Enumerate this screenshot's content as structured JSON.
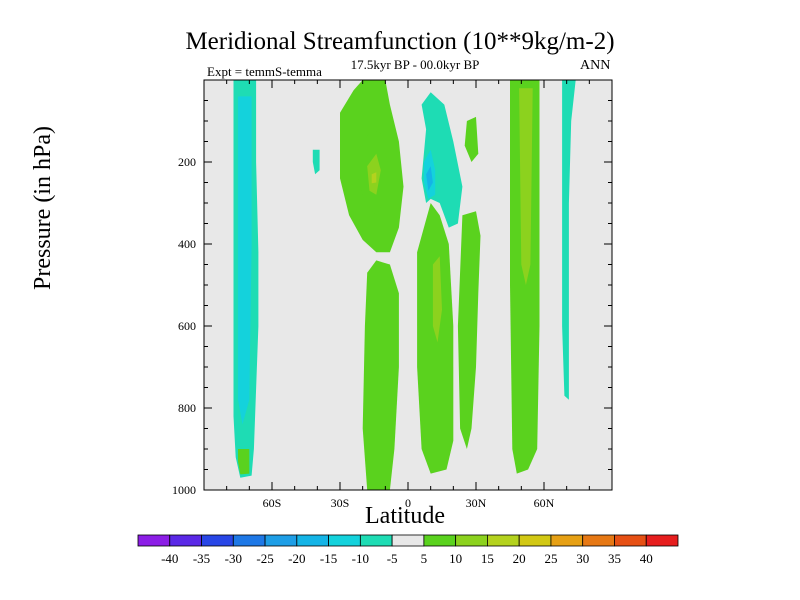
{
  "figure": {
    "title": "Meridional Streamfunction (10**9kg/m-2)",
    "subtitle": "17.5kyr BP - 00.0kyr BP",
    "experiment": "Expt = temmS-temma",
    "season": "ANN",
    "background": "#e8e8e8"
  },
  "chart_data": {
    "type": "heatmap",
    "title": "Meridional Streamfunction (10**9kg/m-2)",
    "xlabel": "Latitude",
    "ylabel": "Pressure (in hPa)",
    "xlim": [
      -90,
      90
    ],
    "ylim": [
      1000,
      0
    ],
    "x_ticks": [
      {
        "value": -60,
        "label": "60S"
      },
      {
        "value": -30,
        "label": "30S"
      },
      {
        "value": 0,
        "label": "0"
      },
      {
        "value": 30,
        "label": "30N"
      },
      {
        "value": 60,
        "label": "60N"
      }
    ],
    "y_ticks": [
      {
        "value": 200,
        "label": "200"
      },
      {
        "value": 400,
        "label": "400"
      },
      {
        "value": 600,
        "label": "600"
      },
      {
        "value": 800,
        "label": "800"
      },
      {
        "value": 1000,
        "label": "1000"
      }
    ],
    "colorbar": {
      "levels": [
        -40,
        -35,
        -30,
        -25,
        -20,
        -15,
        -10,
        -5,
        5,
        10,
        15,
        20,
        25,
        30,
        35,
        40
      ],
      "labels": [
        "-40",
        "-35",
        "-30",
        "-25",
        "-20",
        "-15",
        "-10",
        "-5",
        "5",
        "10",
        "15",
        "20",
        "25",
        "30",
        "35",
        "40"
      ],
      "colors": [
        "#8c1ee6",
        "#5a28e6",
        "#2846e6",
        "#1e78e6",
        "#1e9ee6",
        "#14b4e6",
        "#14d2dc",
        "#1edcb4",
        "#e8e8e8",
        "#5ad21e",
        "#8cd21e",
        "#b4d21e",
        "#d2c814",
        "#e6a014",
        "#e67814",
        "#e65014",
        "#e61e1e"
      ]
    },
    "contours": [
      {
        "name": "sh-high-lat-negative",
        "value": -10,
        "points": [
          [
            -77,
            0
          ],
          [
            -67,
            0
          ],
          [
            -67,
            200
          ],
          [
            -66,
            420
          ],
          [
            -66,
            600
          ],
          [
            -68,
            900
          ],
          [
            -69,
            965
          ],
          [
            -74,
            970
          ],
          [
            -76,
            920
          ],
          [
            -77,
            820
          ],
          [
            -77,
            500
          ],
          [
            -77,
            0
          ]
        ]
      },
      {
        "name": "sh-high-lat-core",
        "value": -15,
        "points": [
          [
            -75,
            40
          ],
          [
            -69,
            40
          ],
          [
            -69,
            400
          ],
          [
            -70,
            780
          ],
          [
            -73,
            840
          ],
          [
            -75,
            780
          ],
          [
            -75,
            300
          ],
          [
            -75,
            40
          ]
        ]
      },
      {
        "name": "sh-high-lat-base",
        "value": 5,
        "points": [
          [
            -75,
            900
          ],
          [
            -70,
            900
          ],
          [
            -70,
            960
          ],
          [
            -74,
            962
          ],
          [
            -75,
            930
          ],
          [
            -75,
            900
          ]
        ]
      },
      {
        "name": "sh-subtropical-upper-positive",
        "value": 5,
        "points": [
          [
            -30,
            80
          ],
          [
            -24,
            25
          ],
          [
            -20,
            0
          ],
          [
            -10,
            0
          ],
          [
            -8,
            60
          ],
          [
            -4,
            150
          ],
          [
            -2,
            260
          ],
          [
            -4,
            360
          ],
          [
            -8,
            420
          ],
          [
            -14,
            420
          ],
          [
            -20,
            390
          ],
          [
            -26,
            330
          ],
          [
            -30,
            240
          ],
          [
            -30,
            80
          ]
        ]
      },
      {
        "name": "sh-subtropical-upper-core",
        "value": 10,
        "points": [
          [
            -22,
            170
          ],
          [
            -16,
            120
          ],
          [
            -12,
            130
          ],
          [
            -9,
            200
          ],
          [
            -10,
            290
          ],
          [
            -14,
            330
          ],
          [
            -19,
            300
          ],
          [
            -22,
            240
          ],
          [
            -22,
            170
          ]
        ]
      },
      {
        "name": "sh-subtropical-upper-peak",
        "value": 15,
        "points": [
          [
            -18,
            210
          ],
          [
            -14,
            180
          ],
          [
            -12,
            220
          ],
          [
            -14,
            280
          ],
          [
            -17,
            270
          ],
          [
            -18,
            210
          ]
        ]
      },
      {
        "name": "sh-subtropical-upper-max",
        "value": 20,
        "points": [
          [
            -16,
            230
          ],
          [
            -14,
            225
          ],
          [
            -14,
            250
          ],
          [
            -16,
            252
          ],
          [
            -16,
            230
          ]
        ]
      },
      {
        "name": "sh-subtropical-lower-positive",
        "value": 5,
        "points": [
          [
            -18,
            470
          ],
          [
            -14,
            440
          ],
          [
            -8,
            450
          ],
          [
            -4,
            520
          ],
          [
            -4,
            700
          ],
          [
            -6,
            900
          ],
          [
            -8,
            1000
          ],
          [
            -18,
            1000
          ],
          [
            -20,
            850
          ],
          [
            -19,
            600
          ],
          [
            -18,
            470
          ]
        ]
      },
      {
        "name": "tropical-negative",
        "value": -5,
        "points": [
          [
            8,
            120
          ],
          [
            6,
            60
          ],
          [
            10,
            30
          ],
          [
            16,
            60
          ],
          [
            20,
            150
          ],
          [
            24,
            260
          ],
          [
            22,
            350
          ],
          [
            18,
            360
          ],
          [
            14,
            300
          ],
          [
            10,
            290
          ],
          [
            8,
            300
          ],
          [
            6,
            240
          ],
          [
            8,
            120
          ]
        ]
      },
      {
        "name": "tropical-negative-core",
        "value": -15,
        "points": [
          [
            7,
            200
          ],
          [
            10,
            170
          ],
          [
            12,
            220
          ],
          [
            12,
            280
          ],
          [
            9,
            290
          ],
          [
            7,
            250
          ],
          [
            7,
            200
          ]
        ]
      },
      {
        "name": "tropical-negative-peak",
        "value": -20,
        "points": [
          [
            8,
            230
          ],
          [
            10,
            210
          ],
          [
            11,
            250
          ],
          [
            9,
            270
          ],
          [
            8,
            230
          ]
        ]
      },
      {
        "name": "equatorial-lower-positive",
        "value": 5,
        "points": [
          [
            4,
            420
          ],
          [
            10,
            300
          ],
          [
            14,
            330
          ],
          [
            18,
            400
          ],
          [
            20,
            600
          ],
          [
            20,
            880
          ],
          [
            17,
            950
          ],
          [
            10,
            960
          ],
          [
            6,
            900
          ],
          [
            4,
            700
          ],
          [
            4,
            420
          ]
        ]
      },
      {
        "name": "equatorial-lower-core",
        "value": 10,
        "points": [
          [
            8,
            480
          ],
          [
            12,
            380
          ],
          [
            16,
            420
          ],
          [
            16,
            700
          ],
          [
            14,
            900
          ],
          [
            10,
            940
          ],
          [
            9,
            800
          ],
          [
            8,
            480
          ]
        ]
      },
      {
        "name": "equatorial-lower-peak",
        "value": 15,
        "points": [
          [
            11,
            450
          ],
          [
            14,
            430
          ],
          [
            15,
            560
          ],
          [
            13,
            640
          ],
          [
            11,
            600
          ],
          [
            11,
            450
          ]
        ]
      },
      {
        "name": "nh-midlat-positive",
        "value": 5,
        "points": [
          [
            45,
            0
          ],
          [
            58,
            0
          ],
          [
            58,
            600
          ],
          [
            57,
            900
          ],
          [
            53,
            950
          ],
          [
            48,
            960
          ],
          [
            46,
            900
          ],
          [
            45,
            500
          ],
          [
            45,
            0
          ]
        ]
      },
      {
        "name": "nh-midlat-core",
        "value": 10,
        "points": [
          [
            47,
            0
          ],
          [
            57,
            0
          ],
          [
            56,
            400
          ],
          [
            55,
            700
          ],
          [
            52,
            880
          ],
          [
            49,
            900
          ],
          [
            47,
            700
          ],
          [
            47,
            0
          ]
        ]
      },
      {
        "name": "nh-midlat-peak",
        "value": 15,
        "points": [
          [
            49,
            20
          ],
          [
            55,
            20
          ],
          [
            54,
            450
          ],
          [
            52,
            500
          ],
          [
            50,
            450
          ],
          [
            49,
            20
          ]
        ]
      },
      {
        "name": "nh-high-lat-negative",
        "value": -10,
        "points": [
          [
            68,
            0
          ],
          [
            74,
            0
          ],
          [
            72,
            100
          ],
          [
            71,
            300
          ],
          [
            71,
            600
          ],
          [
            71,
            780
          ],
          [
            69,
            770
          ],
          [
            68,
            600
          ],
          [
            68,
            0
          ]
        ]
      },
      {
        "name": "nh-subtropical-scatter",
        "value": 5,
        "points": [
          [
            24,
            330
          ],
          [
            30,
            320
          ],
          [
            32,
            380
          ],
          [
            31,
            520
          ],
          [
            30,
            700
          ],
          [
            28,
            850
          ],
          [
            26,
            900
          ],
          [
            23,
            850
          ],
          [
            22,
            600
          ],
          [
            24,
            330
          ]
        ]
      },
      {
        "name": "nh-upper-small-cell",
        "value": 5,
        "points": [
          [
            26,
            100
          ],
          [
            30,
            90
          ],
          [
            31,
            180
          ],
          [
            28,
            200
          ],
          [
            25,
            160
          ],
          [
            26,
            100
          ]
        ]
      },
      {
        "name": "sh-small-negative-cell",
        "value": -10,
        "points": [
          [
            -42,
            170
          ],
          [
            -39,
            170
          ],
          [
            -39,
            220
          ],
          [
            -41,
            230
          ],
          [
            -42,
            200
          ],
          [
            -42,
            170
          ]
        ]
      }
    ]
  }
}
